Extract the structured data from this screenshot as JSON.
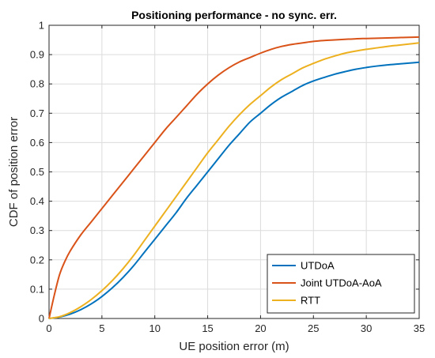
{
  "chart_data": {
    "type": "line",
    "title": "Positioning performance - no sync. err.",
    "xlabel": "UE position error (m)",
    "ylabel": "CDF of position error",
    "xlim": [
      0,
      35
    ],
    "ylim": [
      0,
      1
    ],
    "xticks": [
      0,
      5,
      10,
      15,
      20,
      25,
      30,
      35
    ],
    "yticks": [
      0,
      0.1,
      0.2,
      0.3,
      0.4,
      0.5,
      0.6,
      0.7,
      0.8,
      0.9,
      1
    ],
    "grid": true,
    "legend_position": "bottom-right",
    "series": [
      {
        "name": "UTDoA",
        "color": "#0072BD",
        "x": [
          0,
          1,
          2,
          3,
          4,
          5,
          6,
          7,
          8,
          9,
          10,
          11,
          12,
          13,
          14,
          15,
          16,
          17,
          18,
          19,
          20,
          21,
          22,
          23,
          24,
          25,
          26,
          27,
          28,
          29,
          30,
          31,
          32,
          33,
          34,
          35
        ],
        "y": [
          0,
          0.005,
          0.015,
          0.03,
          0.05,
          0.075,
          0.105,
          0.14,
          0.18,
          0.225,
          0.27,
          0.315,
          0.36,
          0.41,
          0.455,
          0.5,
          0.545,
          0.59,
          0.63,
          0.67,
          0.7,
          0.73,
          0.755,
          0.775,
          0.795,
          0.81,
          0.822,
          0.833,
          0.842,
          0.85,
          0.856,
          0.861,
          0.865,
          0.868,
          0.871,
          0.874
        ]
      },
      {
        "name": "Joint UTDoA-AoA",
        "color": "#D95319",
        "x": [
          0,
          0.5,
          1,
          1.5,
          2,
          3,
          4,
          5,
          6,
          7,
          8,
          9,
          10,
          11,
          12,
          13,
          14,
          15,
          16,
          17,
          18,
          19,
          20,
          21,
          22,
          23,
          24,
          25,
          26,
          27,
          28,
          29,
          30,
          31,
          32,
          33,
          34,
          35
        ],
        "y": [
          0,
          0.08,
          0.15,
          0.195,
          0.23,
          0.285,
          0.33,
          0.375,
          0.42,
          0.465,
          0.51,
          0.555,
          0.6,
          0.645,
          0.685,
          0.725,
          0.765,
          0.8,
          0.83,
          0.855,
          0.875,
          0.89,
          0.905,
          0.918,
          0.928,
          0.935,
          0.94,
          0.945,
          0.948,
          0.95,
          0.952,
          0.954,
          0.955,
          0.956,
          0.957,
          0.958,
          0.959,
          0.96
        ]
      },
      {
        "name": "RTT",
        "color": "#EDB120",
        "x": [
          0,
          1,
          2,
          3,
          4,
          5,
          6,
          7,
          8,
          9,
          10,
          11,
          12,
          13,
          14,
          15,
          16,
          17,
          18,
          19,
          20,
          21,
          22,
          23,
          24,
          25,
          26,
          27,
          28,
          29,
          30,
          31,
          32,
          33,
          34,
          35
        ],
        "y": [
          0,
          0.006,
          0.02,
          0.04,
          0.065,
          0.095,
          0.13,
          0.17,
          0.215,
          0.265,
          0.315,
          0.365,
          0.415,
          0.465,
          0.515,
          0.565,
          0.61,
          0.655,
          0.695,
          0.73,
          0.76,
          0.79,
          0.815,
          0.835,
          0.855,
          0.87,
          0.884,
          0.895,
          0.905,
          0.912,
          0.918,
          0.923,
          0.928,
          0.932,
          0.936,
          0.94
        ]
      }
    ]
  }
}
